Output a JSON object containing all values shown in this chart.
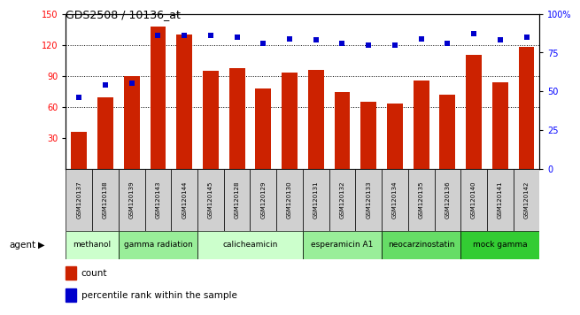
{
  "title": "GDS2508 / 10136_at",
  "categories": [
    "GSM120137",
    "GSM120138",
    "GSM120139",
    "GSM120143",
    "GSM120144",
    "GSM120145",
    "GSM120128",
    "GSM120129",
    "GSM120130",
    "GSM120131",
    "GSM120132",
    "GSM120133",
    "GSM120134",
    "GSM120135",
    "GSM120136",
    "GSM120140",
    "GSM120141",
    "GSM120142"
  ],
  "bar_values": [
    36,
    69,
    90,
    138,
    130,
    95,
    97,
    78,
    93,
    96,
    74,
    65,
    63,
    85,
    72,
    110,
    84,
    118
  ],
  "dot_pct": [
    46,
    54,
    55,
    86,
    86,
    86,
    85,
    81,
    84,
    83,
    81,
    80,
    80,
    84,
    81,
    87,
    83,
    85
  ],
  "agents": [
    {
      "label": "methanol",
      "start": 0,
      "end": 2,
      "color": "#ccffcc"
    },
    {
      "label": "gamma radiation",
      "start": 2,
      "end": 5,
      "color": "#99ee99"
    },
    {
      "label": "calicheamicin",
      "start": 5,
      "end": 9,
      "color": "#ccffcc"
    },
    {
      "label": "esperamicin A1",
      "start": 9,
      "end": 12,
      "color": "#99ee99"
    },
    {
      "label": "neocarzinostatin",
      "start": 12,
      "end": 15,
      "color": "#66dd66"
    },
    {
      "label": "mock gamma",
      "start": 15,
      "end": 18,
      "color": "#33cc33"
    }
  ],
  "ylim_left": [
    0,
    150
  ],
  "ylim_right": [
    0,
    100
  ],
  "yticks_left": [
    30,
    60,
    90,
    120,
    150
  ],
  "yticks_right": [
    0,
    25,
    50,
    75,
    100
  ],
  "bar_color": "#cc2200",
  "dot_color": "#0000cc",
  "plot_bg_color": "#ffffff",
  "grid_dotted_at": [
    60,
    90,
    120
  ],
  "legend_items": [
    "count",
    "percentile rank within the sample"
  ]
}
